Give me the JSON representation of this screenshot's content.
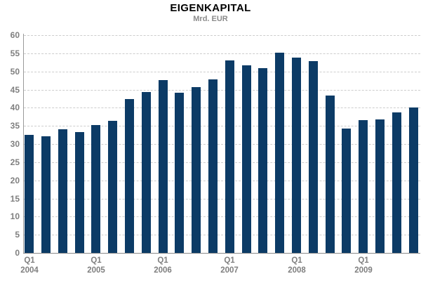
{
  "chart_data": {
    "type": "bar",
    "title": "EIGENKAPITAL",
    "subtitle": "Mrd. EUR",
    "ylabel": "Mrd. EUR",
    "ylim": [
      0,
      60
    ],
    "ytick_step": 5,
    "ytick_labels": [
      "0",
      "5",
      "10",
      "15",
      "20",
      "25",
      "30",
      "35",
      "40",
      "45",
      "50",
      "55",
      "60"
    ],
    "grid": "horizontal-dashed",
    "legend_position": "none",
    "categories": [
      "Q1 2004",
      "Q2 2004",
      "Q3 2004",
      "Q4 2004",
      "Q1 2005",
      "Q2 2005",
      "Q3 2005",
      "Q4 2005",
      "Q1 2006",
      "Q2 2006",
      "Q3 2006",
      "Q4 2006",
      "Q1 2007",
      "Q2 2007",
      "Q3 2007",
      "Q4 2007",
      "Q1 2008",
      "Q2 2008",
      "Q3 2008",
      "Q4 2008",
      "Q1 2009",
      "Q2 2009",
      "Q3 2009",
      "Q4 2009"
    ],
    "values": [
      32.5,
      32.1,
      34.1,
      33.2,
      35.3,
      36.3,
      42.4,
      44.4,
      47.7,
      44.2,
      45.6,
      47.8,
      53.0,
      51.6,
      50.9,
      55.2,
      53.9,
      52.8,
      43.3,
      34.3,
      36.5,
      36.8,
      38.7,
      40.1
    ],
    "x_axis_marks": [
      {
        "quarter": "Q1",
        "year": "2004",
        "index": 0
      },
      {
        "quarter": "Q1",
        "year": "2005",
        "index": 4
      },
      {
        "quarter": "Q1",
        "year": "2006",
        "index": 8
      },
      {
        "quarter": "Q1",
        "year": "2007",
        "index": 12
      },
      {
        "quarter": "Q1",
        "year": "2008",
        "index": 16
      },
      {
        "quarter": "Q1",
        "year": "2009",
        "index": 20
      }
    ]
  },
  "colors": {
    "bar": "#0c3b66",
    "grid": "#cdcdcd",
    "axis": "#9a9a9a",
    "tick_label": "#7f7f7f",
    "title": "#000000",
    "subtitle": "#8a8a8a",
    "background": "#ffffff"
  }
}
